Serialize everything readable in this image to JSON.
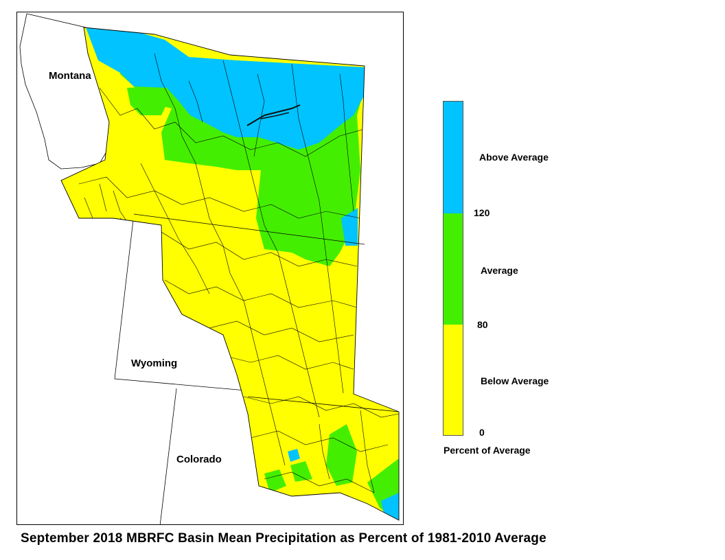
{
  "map": {
    "states": [
      {
        "name": "Montana"
      },
      {
        "name": "Wyoming"
      },
      {
        "name": "Colorado"
      }
    ],
    "categories": [
      {
        "label": "Above Average",
        "color": "#00c3ff"
      },
      {
        "label": "Average",
        "color": "#44ee00"
      },
      {
        "label": "Below Average",
        "color": "#ffff00"
      }
    ]
  },
  "legend": {
    "ticks": [
      "120",
      "80",
      "0"
    ],
    "title": "Percent of Average"
  },
  "caption": "September 2018 MBRFC Basin Mean Precipitation as Percent of 1981-2010 Average"
}
